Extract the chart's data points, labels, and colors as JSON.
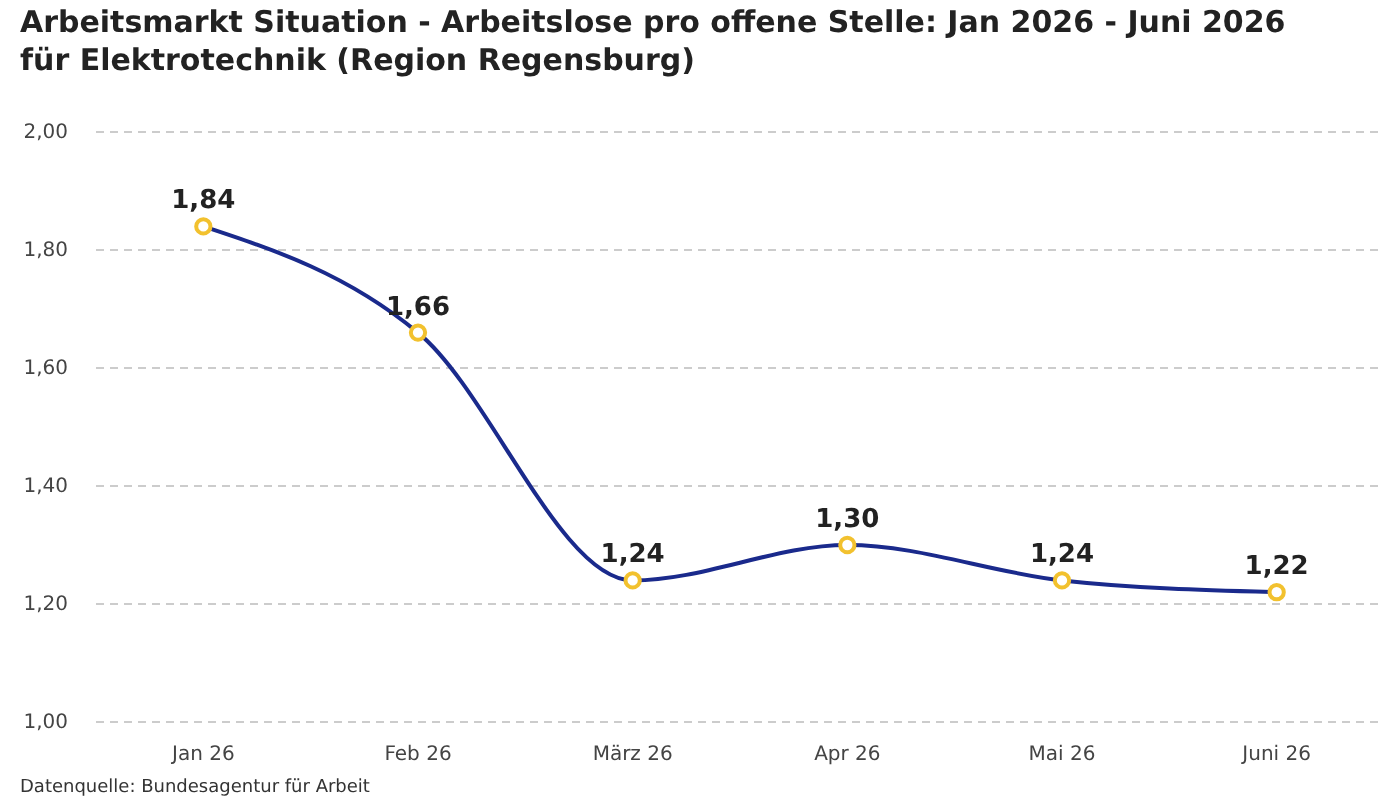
{
  "chart_data": {
    "type": "line",
    "title": "Arbeitsmarkt Situation - Arbeitslose pro offene Stelle: Jan 2026 - Juni 2026 für Elektrotechnik (Region Regensburg)",
    "categories": [
      "Jan 26",
      "Feb 26",
      "März 26",
      "Apr 26",
      "Mai 26",
      "Juni 26"
    ],
    "series": [
      {
        "color": "#1a2a8c",
        "values": [
          1.84,
          1.66,
          1.24,
          1.3,
          1.24,
          1.22
        ],
        "value_labels": [
          "1,84",
          "1,66",
          "1,24",
          "1,30",
          "1,24",
          "1,22"
        ]
      }
    ],
    "ylim": [
      1,
      2
    ],
    "yticks": [
      {
        "value": 1,
        "label": "1,00"
      },
      {
        "value": 1.2,
        "label": "1,20"
      },
      {
        "value": 1.4,
        "label": "1,40"
      },
      {
        "value": 1.6,
        "label": "1,60"
      },
      {
        "value": 1.8,
        "label": "1,80"
      },
      {
        "value": 2,
        "label": "2,00"
      }
    ],
    "grid": "y",
    "marker": "circle",
    "annotations": [
      "Datenquelle: Bundesagentur für Arbeit"
    ]
  }
}
